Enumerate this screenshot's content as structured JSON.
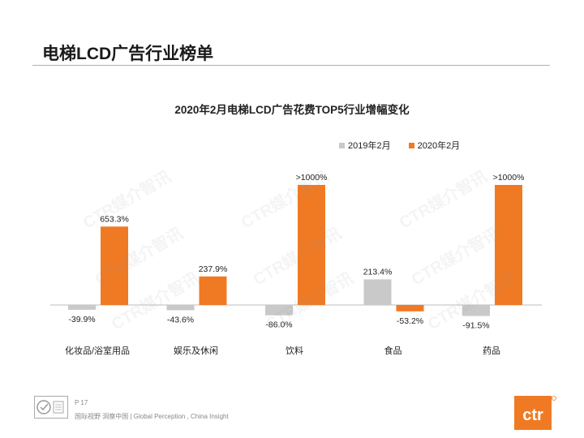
{
  "slide": {
    "title": "电梯LCD广告行业榜单",
    "page_number": "P 17",
    "tagline": "国际视野  洞察中国 | Global Perception , China Insight",
    "brand": "ctr",
    "watermark": "CTR媒介智讯"
  },
  "colors": {
    "series_2019": "#c9c9c9",
    "series_2020": "#f07a24"
  },
  "chart_data": {
    "type": "bar",
    "title": "2020年2月电梯LCD广告花费TOP5行业增幅变化",
    "categories": [
      "化妆品/浴室用品",
      "娱乐及休闲",
      "饮料",
      "食品",
      "药品"
    ],
    "series": [
      {
        "name": "2019年2月",
        "values": [
          -39.9,
          -43.6,
          -86.0,
          213.4,
          -91.5
        ],
        "labels": [
          "-39.9%",
          "-43.6%",
          "-86.0%",
          "213.4%",
          "-91.5%"
        ]
      },
      {
        "name": "2020年2月",
        "values": [
          653.3,
          237.9,
          1000,
          -53.2,
          1000
        ],
        "labels": [
          "653.3%",
          "237.9%",
          ">1000%",
          "-53.2%",
          ">1000%"
        ]
      }
    ],
    "ylim": [
      -100,
      1000
    ],
    "legend_position": "top-right",
    "grid": false
  }
}
